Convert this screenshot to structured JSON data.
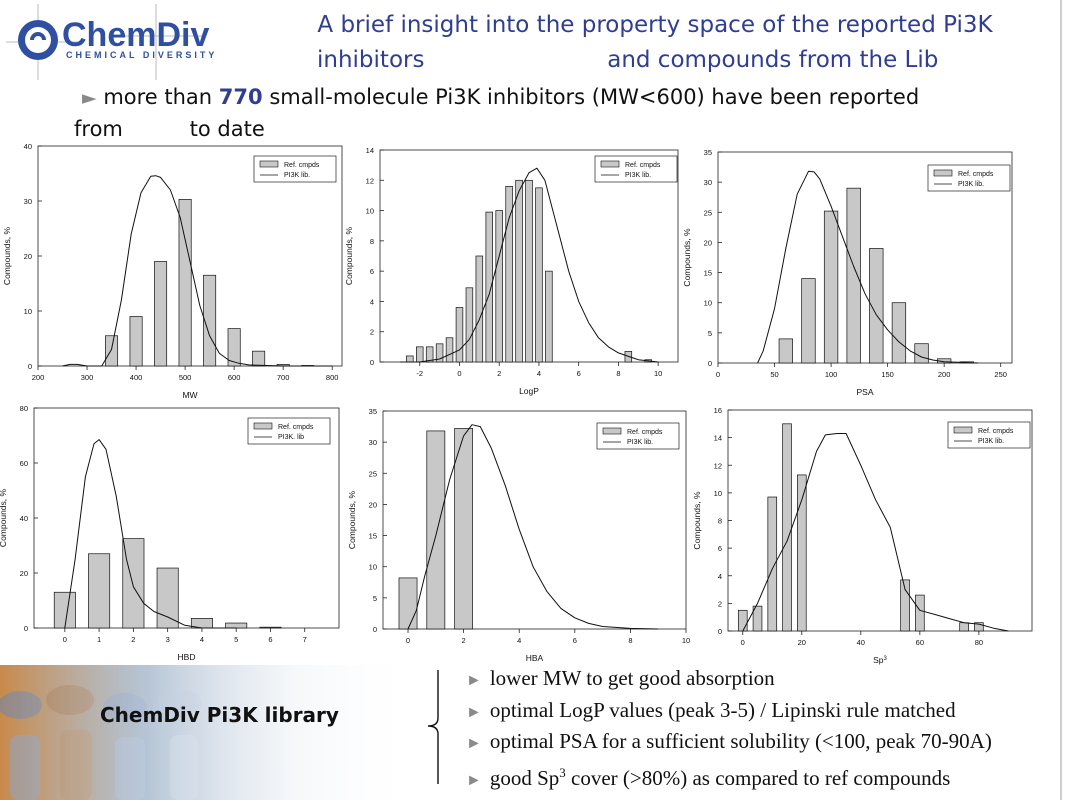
{
  "header": {
    "logo_text": "ChemDiv",
    "logo_subtext": "CHEMICAL DIVERSITY",
    "title_line1": "A brief insight into the property space of the reported Pi3K",
    "title_line2": "inhibitors                         and compounds from the Lib"
  },
  "subtitle": {
    "prefix": "more than ",
    "count": "770",
    "suffix": " small-molecule Pi3K inhibitors (MW<600) have been reported",
    "line2": "from          to date"
  },
  "chart_data": [
    {
      "type": "bar",
      "xlabel": "MW",
      "ylabel": "Compounds, %",
      "xlim": [
        200,
        820
      ],
      "ylim": [
        0,
        40
      ],
      "xticks": [
        200,
        300,
        400,
        500,
        600,
        700,
        800
      ],
      "yticks": [
        0,
        10,
        20,
        30,
        40
      ],
      "bar_width": 25,
      "legend": [
        "Ref. cmpds",
        "PI3K lib."
      ],
      "series": [
        {
          "name": "Ref. cmpds",
          "kind": "bar",
          "x": [
            350,
            400,
            450,
            500,
            550,
            600,
            650,
            700,
            750
          ],
          "values": [
            5.5,
            9,
            19,
            30.3,
            16.5,
            6.8,
            2.7,
            0.3,
            0.1
          ]
        },
        {
          "name": "PI3K lib.",
          "kind": "line",
          "x": [
            250,
            265,
            280,
            300,
            330,
            350,
            370,
            390,
            410,
            430,
            440,
            450,
            470,
            490,
            510,
            530,
            550,
            570,
            590,
            610,
            630,
            660,
            700,
            760,
            800
          ],
          "values": [
            0,
            0.3,
            0.3,
            0,
            0,
            3,
            12,
            24,
            31.5,
            34.5,
            34.6,
            34.3,
            32,
            27,
            19,
            11,
            5.5,
            2.3,
            1,
            0.5,
            0.2,
            0.1,
            0,
            0,
            0
          ]
        }
      ]
    },
    {
      "type": "bar",
      "xlabel": "LogP",
      "ylabel": "Compounds, %",
      "xlim": [
        -4,
        11
      ],
      "ylim": [
        0,
        14
      ],
      "xticks": [
        -2,
        0,
        2,
        4,
        6,
        8,
        10
      ],
      "yticks": [
        0,
        2,
        4,
        6,
        8,
        10,
        12,
        14
      ],
      "bar_width": 0.34,
      "legend": [
        "Ref. cmpds",
        "PI3K lib."
      ],
      "series": [
        {
          "name": "Ref. cmpds",
          "kind": "bar",
          "x": [
            -2.5,
            -2,
            -1.5,
            -1,
            -0.5,
            0,
            0.5,
            1,
            1.5,
            2,
            2.5,
            3,
            3.5,
            4,
            4.5,
            8.5,
            9.5
          ],
          "values": [
            0.4,
            1,
            1,
            1.2,
            1.6,
            3.6,
            4.9,
            7,
            9.9,
            10,
            11.6,
            12,
            12,
            11.5,
            6,
            0.7,
            0.15
          ]
        },
        {
          "name": "PI3K lib.",
          "kind": "line",
          "x": [
            -3,
            -2,
            -1,
            0,
            0.5,
            1,
            1.5,
            2,
            2.5,
            3,
            3.5,
            3.9,
            4.3,
            5,
            5.5,
            6,
            6.5,
            7,
            7.5,
            8,
            9,
            10
          ],
          "values": [
            0,
            0,
            0.2,
            0.8,
            1.5,
            2.8,
            4.5,
            7,
            9.5,
            11.3,
            12.5,
            12.8,
            12,
            8.5,
            6,
            4,
            2.6,
            1.6,
            1,
            0.6,
            0.15,
            0
          ]
        }
      ]
    },
    {
      "type": "bar",
      "xlabel": "PSA",
      "ylabel": "Compounds, %",
      "xlim": [
        0,
        260
      ],
      "ylim": [
        0,
        35
      ],
      "xticks": [
        0,
        50,
        100,
        150,
        200,
        250
      ],
      "yticks": [
        0,
        5,
        10,
        15,
        20,
        25,
        30,
        35
      ],
      "bar_width": 12,
      "legend": [
        "Ref. cmpds",
        "PI3K lib."
      ],
      "series": [
        {
          "name": "Ref. cmpds",
          "kind": "bar",
          "x": [
            60,
            80,
            100,
            120,
            140,
            160,
            180,
            200,
            220
          ],
          "values": [
            4,
            14,
            25.2,
            29,
            19,
            10,
            3.2,
            0.7,
            0.2
          ]
        },
        {
          "name": "PI3K lib.",
          "kind": "line",
          "x": [
            35,
            40,
            50,
            60,
            70,
            80,
            85,
            90,
            100,
            110,
            120,
            130,
            140,
            150,
            160,
            170,
            180,
            190,
            200,
            215,
            230
          ],
          "values": [
            0,
            2,
            9,
            19,
            28,
            31.8,
            31.7,
            30.5,
            26,
            21,
            16,
            11.5,
            8,
            5.5,
            3.5,
            2,
            1,
            0.5,
            0.2,
            0.1,
            0
          ]
        }
      ]
    },
    {
      "type": "bar",
      "xlabel": "HBD",
      "ylabel": "Compounds, %",
      "xlim": [
        -0.9,
        8
      ],
      "ylim": [
        0,
        80
      ],
      "xticks": [
        0,
        1,
        2,
        3,
        4,
        5,
        6,
        7
      ],
      "yticks": [
        0,
        20,
        40,
        60,
        80
      ],
      "bar_width": 0.62,
      "legend": [
        "Ref. cmpds",
        "PI3K. lib"
      ],
      "series": [
        {
          "name": "Ref. cmpds",
          "kind": "bar",
          "x": [
            0,
            1,
            2,
            3,
            4,
            5,
            6
          ],
          "values": [
            13,
            27,
            32.5,
            21.8,
            3.5,
            1.8,
            0.3
          ]
        },
        {
          "name": "PI3K. lib",
          "kind": "line",
          "x": [
            0,
            0.3,
            0.6,
            0.85,
            1,
            1.2,
            1.5,
            1.8,
            2,
            2.3,
            2.6,
            3,
            3.5,
            4,
            5
          ],
          "values": [
            0,
            25,
            55,
            67,
            68.5,
            65,
            48,
            25,
            15,
            9,
            6,
            4,
            1,
            0,
            0
          ]
        }
      ]
    },
    {
      "type": "bar",
      "xlabel": "HBA",
      "ylabel": "Compounds, %",
      "xlim": [
        -0.9,
        10
      ],
      "ylim": [
        0,
        35
      ],
      "xticks": [
        0,
        2,
        4,
        6,
        8,
        10
      ],
      "yticks": [
        0,
        5,
        10,
        15,
        20,
        25,
        30,
        35
      ],
      "bar_width": 0.65,
      "legend": [
        "Ref. cmpds",
        "PI3K lib."
      ],
      "series": [
        {
          "name": "Ref. cmpds",
          "kind": "bar",
          "x": [
            0,
            1,
            2
          ],
          "values": [
            8.2,
            31.8,
            32.2
          ]
        },
        {
          "name": "PI3K lib.",
          "kind": "line",
          "x": [
            0,
            0.3,
            0.6,
            1,
            1.5,
            2,
            2.3,
            2.6,
            3,
            3.5,
            4,
            4.5,
            5,
            5.5,
            6,
            6.5,
            7,
            8,
            9
          ],
          "values": [
            0,
            3,
            8.5,
            15,
            24,
            31,
            32.8,
            32.5,
            29,
            23,
            16,
            10,
            6,
            3.3,
            1.8,
            0.9,
            0.4,
            0.1,
            0
          ]
        }
      ]
    },
    {
      "type": "bar",
      "xlabel": "Sp3",
      "ylabel": "Compounds, %",
      "xlim": [
        -5,
        98
      ],
      "ylim": [
        0,
        16
      ],
      "xticks": [
        0,
        20,
        40,
        60,
        80
      ],
      "yticks": [
        0,
        2,
        4,
        6,
        8,
        10,
        12,
        14,
        16
      ],
      "bar_width": 3,
      "legend": [
        "Ref. cmpds",
        "PI3K lib."
      ],
      "series": [
        {
          "name": "Ref. cmpds",
          "kind": "bar",
          "x": [
            0,
            5,
            10,
            15,
            20,
            55,
            60,
            75,
            80
          ],
          "values": [
            1.5,
            1.8,
            9.7,
            15,
            11.3,
            3.7,
            2.6,
            0.6,
            0.6
          ]
        },
        {
          "name": "PI3K lib.",
          "kind": "line",
          "x": [
            0,
            5,
            10,
            15,
            20,
            25,
            28,
            32,
            35,
            40,
            45,
            50,
            55,
            60,
            65,
            70,
            75,
            80,
            85,
            90
          ],
          "values": [
            0,
            2,
            4.5,
            6.5,
            9.5,
            13,
            14.2,
            14.3,
            14.3,
            12,
            9.5,
            7.5,
            3,
            1.5,
            1.2,
            0.9,
            0.6,
            0.5,
            0.2,
            0
          ]
        }
      ]
    }
  ],
  "banner": {
    "text": "ChemDiv Pi3K library"
  },
  "notes": [
    {
      "text": "lower MW to get good absorption"
    },
    {
      "text": "optimal LogP values (peak 3-5) / Lipinski rule matched"
    },
    {
      "text": "optimal PSA for a sufficient solubility (<100, peak 70-90A)"
    },
    {
      "pre": "good Sp",
      "sup": "3",
      "post": " cover (>80%) as compared to ref compounds"
    }
  ]
}
